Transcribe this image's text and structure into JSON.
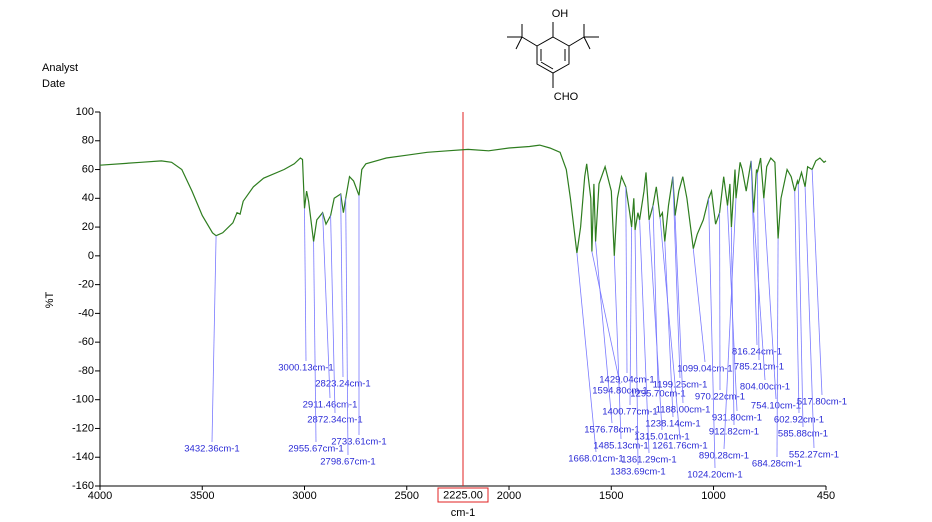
{
  "chart_data": {
    "type": "line",
    "header_lines": [
      "Analyst",
      "Date"
    ],
    "structure_labels": [
      "OH",
      "CHO"
    ],
    "ylabel": "%T",
    "xlabel": "cm-1",
    "color": "#2e7d1f",
    "peak_color": "#2b2bd6",
    "cursor": {
      "value": 2225.0,
      "label": "2225.00"
    },
    "cursor_color": "#e02020",
    "xlim": [
      4000,
      450
    ],
    "ylim": [
      -160,
      100
    ],
    "xticks": [
      4000,
      3500,
      3000,
      2500,
      2000,
      1500,
      1000,
      450
    ],
    "yticks": [
      -160,
      -140,
      -120,
      -100,
      -80,
      -60,
      -40,
      -20,
      0,
      20,
      40,
      60,
      80,
      100
    ],
    "x": [
      4000,
      3800,
      3700,
      3650,
      3600,
      3550,
      3500,
      3450,
      3432.36,
      3400,
      3350,
      3330,
      3315,
      3300,
      3250,
      3200,
      3100,
      3050,
      3020,
      3010,
      3000.13,
      2990,
      2980,
      2955.67,
      2940,
      2911.46,
      2895,
      2872.34,
      2855,
      2823.24,
      2810,
      2798.67,
      2780,
      2760,
      2733.61,
      2720,
      2700,
      2600,
      2500,
      2400,
      2300,
      2200,
      2100,
      2000,
      1900,
      1850,
      1800,
      1750,
      1720,
      1700,
      1668.01,
      1650,
      1630,
      1620,
      1600,
      1594.8,
      1585,
      1576.78,
      1560,
      1530,
      1500,
      1485.13,
      1470,
      1450,
      1429.04,
      1410,
      1400.77,
      1390,
      1383.69,
      1370,
      1361.29,
      1340,
      1330,
      1315.01,
      1305,
      1295.7,
      1280,
      1261.76,
      1250,
      1238.14,
      1220,
      1199.25,
      1188.0,
      1170,
      1150,
      1130,
      1099.04,
      1080,
      1050,
      1024.2,
      1010,
      990,
      970.22,
      950,
      931.8,
      920,
      912.82,
      895,
      890.28,
      870,
      860,
      840,
      816.24,
      804.0,
      790,
      785.21,
      770,
      754.1,
      740,
      720,
      700,
      684.28,
      670,
      640,
      620,
      602.92,
      590,
      585.88,
      570,
      552.27,
      540,
      517.8,
      500,
      480,
      460,
      450
    ],
    "values": [
      63,
      65,
      66,
      65,
      60,
      45,
      28,
      16,
      14,
      16,
      23,
      30,
      29,
      38,
      48,
      54,
      60,
      64,
      68,
      67,
      33,
      45,
      38,
      10,
      25,
      30,
      22,
      28,
      40,
      43,
      30,
      40,
      55,
      52,
      42,
      60,
      64,
      68,
      70,
      72,
      73,
      74,
      73,
      75,
      76,
      77,
      75,
      72,
      60,
      40,
      2,
      20,
      55,
      64,
      40,
      3,
      50,
      10,
      50,
      62,
      45,
      0,
      40,
      55,
      48,
      30,
      20,
      40,
      18,
      30,
      25,
      45,
      58,
      25,
      30,
      35,
      48,
      27,
      30,
      10,
      35,
      55,
      28,
      45,
      55,
      40,
      5,
      15,
      25,
      40,
      45,
      22,
      30,
      55,
      35,
      50,
      20,
      60,
      40,
      65,
      60,
      45,
      66,
      30,
      60,
      58,
      68,
      40,
      62,
      68,
      65,
      12,
      40,
      60,
      55,
      45,
      52,
      50,
      58,
      48,
      62,
      60,
      66,
      68,
      65,
      66
    ],
    "peaks": {
      "x": [
        3432.36,
        3000.13,
        2823.24,
        2911.46,
        2872.34,
        2733.61,
        2955.67,
        2798.67,
        1668.01,
        1576.78,
        1485.13,
        1383.69,
        1361.29,
        1594.8,
        1429.04,
        1400.77,
        1315.01,
        1261.76,
        1238.14,
        1295.7,
        1199.25,
        1188.0,
        1099.04,
        970.22,
        931.8,
        912.82,
        890.28,
        1024.2,
        816.24,
        785.21,
        804.0,
        754.1,
        684.28,
        602.92,
        585.88,
        552.27,
        517.8
      ],
      "values": [
        14,
        33,
        43,
        30,
        28,
        42,
        10,
        40,
        2,
        10,
        0,
        18,
        25,
        3,
        48,
        20,
        25,
        27,
        10,
        35,
        55,
        28,
        5,
        30,
        35,
        20,
        40,
        40,
        66,
        58,
        30,
        40,
        12,
        45,
        50,
        48,
        60
      ],
      "value_labels": [
        "3432.36cm-1",
        "3000.13cm-1",
        "2823.24cm-1",
        "2911.46cm-1",
        "2872.34cm-1",
        "2733.61cm-1",
        "2955.67cm-1",
        "2798.67cm-1",
        "1668.01cm-1",
        "1576.78cm-1",
        "1485.13cm-1",
        "1383.69cm-1",
        "1361.29cm-1",
        "1594.80cm-1",
        "1429.04cm-1",
        "1400.77cm-1",
        "1315.01cm-1",
        "1261.76cm-1",
        "1238.14cm-1",
        "1295.70cm-1",
        "1199.25cm-1",
        "1188.00cm-1",
        "1099.04cm-1",
        "970.22cm-1",
        "931.80cm-1",
        "912.82cm-1",
        "890.28cm-1",
        "1024.20cm-1",
        "816.24cm-1",
        "785.21cm-1",
        "804.00cm-1",
        "754.10cm-1",
        "684.28cm-1",
        "602.92cm-1",
        "585.88cm-1",
        "552.27cm-1",
        "517.80cm-1"
      ]
    }
  }
}
